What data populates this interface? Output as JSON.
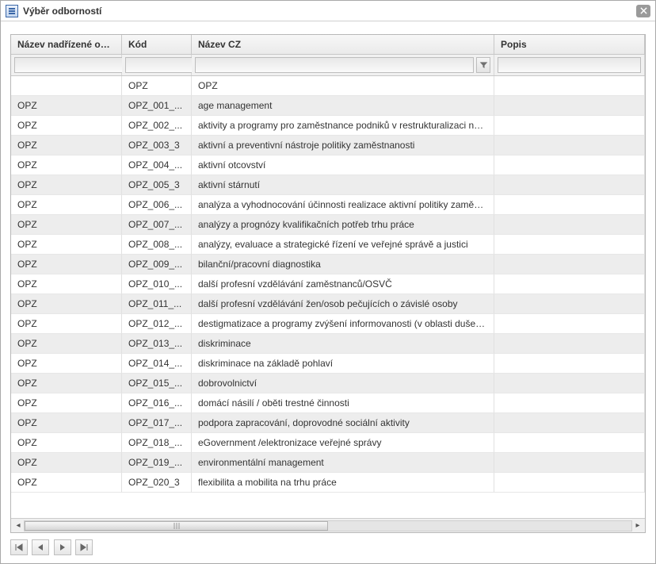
{
  "window": {
    "title": "Výběr odborností"
  },
  "columns": {
    "parent": "Název nadřízené odbornosti",
    "code": "Kód",
    "name": "Název CZ",
    "desc": "Popis"
  },
  "filters": {
    "parent": "",
    "code": "",
    "name": "",
    "desc": ""
  },
  "rows": [
    {
      "parent": "",
      "code": "OPZ",
      "name": "OPZ",
      "desc": ""
    },
    {
      "parent": "OPZ",
      "code": "OPZ_001_...",
      "name": "age management",
      "desc": ""
    },
    {
      "parent": "OPZ",
      "code": "OPZ_002_...",
      "name": "aktivity a programy pro zaměstnance podniků v restrukturalizaci nebo kon...",
      "desc": ""
    },
    {
      "parent": "OPZ",
      "code": "OPZ_003_3",
      "name": "aktivní a preventivní nástroje politiky zaměstnanosti",
      "desc": ""
    },
    {
      "parent": "OPZ",
      "code": "OPZ_004_...",
      "name": "aktivní otcovství",
      "desc": ""
    },
    {
      "parent": "OPZ",
      "code": "OPZ_005_3",
      "name": "aktivní stárnutí",
      "desc": ""
    },
    {
      "parent": "OPZ",
      "code": "OPZ_006_...",
      "name": "analýza a vyhodnocování účinnosti realizace aktivní politiky zaměstnanosti",
      "desc": ""
    },
    {
      "parent": "OPZ",
      "code": "OPZ_007_...",
      "name": "analýzy a prognózy kvalifikačních potřeb trhu práce",
      "desc": ""
    },
    {
      "parent": "OPZ",
      "code": "OPZ_008_...",
      "name": "analýzy, evaluace a strategické řízení ve veřejné správě a justici",
      "desc": ""
    },
    {
      "parent": "OPZ",
      "code": "OPZ_009_...",
      "name": "bilanční/pracovní diagnostika",
      "desc": ""
    },
    {
      "parent": "OPZ",
      "code": "OPZ_010_...",
      "name": "další profesní vzdělávání zaměstnanců/OSVČ",
      "desc": ""
    },
    {
      "parent": "OPZ",
      "code": "OPZ_011_...",
      "name": "další profesní vzdělávání žen/osob pečujících o závislé osoby",
      "desc": ""
    },
    {
      "parent": "OPZ",
      "code": "OPZ_012_...",
      "name": "destigmatizace a programy zvýšení informovanosti (v oblasti duševního zd...",
      "desc": ""
    },
    {
      "parent": "OPZ",
      "code": "OPZ_013_...",
      "name": "diskriminace",
      "desc": ""
    },
    {
      "parent": "OPZ",
      "code": "OPZ_014_...",
      "name": "diskriminace na základě pohlaví",
      "desc": ""
    },
    {
      "parent": "OPZ",
      "code": "OPZ_015_...",
      "name": "dobrovolnictví",
      "desc": ""
    },
    {
      "parent": "OPZ",
      "code": "OPZ_016_...",
      "name": "domácí násilí / oběti trestné činnosti",
      "desc": ""
    },
    {
      "parent": "OPZ",
      "code": "OPZ_017_...",
      "name": "podpora zapracování, doprovodné sociální aktivity",
      "desc": ""
    },
    {
      "parent": "OPZ",
      "code": "OPZ_018_...",
      "name": "eGovernment /elektronizace veřejné správy",
      "desc": ""
    },
    {
      "parent": "OPZ",
      "code": "OPZ_019_...",
      "name": "environmentální management",
      "desc": ""
    },
    {
      "parent": "OPZ",
      "code": "OPZ_020_3",
      "name": "flexibilita a mobilita na trhu práce",
      "desc": ""
    }
  ]
}
